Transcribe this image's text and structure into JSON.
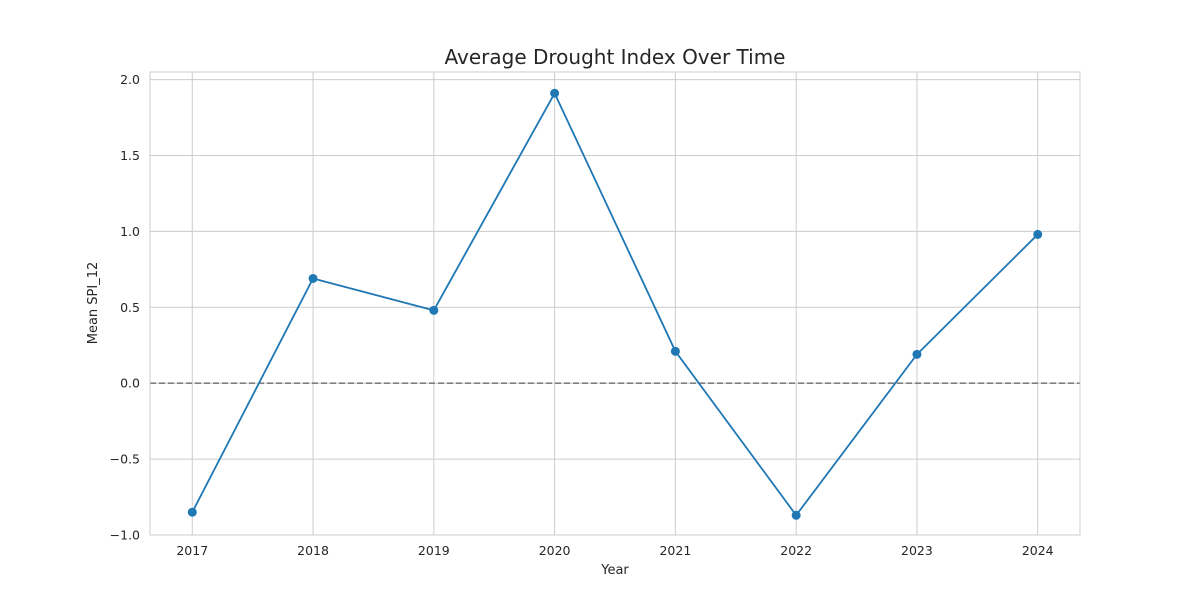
{
  "chart_data": {
    "type": "line",
    "title": "Average Drought Index Over Time",
    "xlabel": "Year",
    "ylabel": "Mean SPI_12",
    "categories": [
      "2017",
      "2018",
      "2019",
      "2020",
      "2021",
      "2022",
      "2023",
      "2024"
    ],
    "x": [
      2017,
      2018,
      2019,
      2020,
      2021,
      2022,
      2023,
      2024
    ],
    "series": [
      {
        "values": [
          -0.85,
          0.69,
          0.48,
          1.91,
          0.21,
          -0.87,
          0.19,
          0.98
        ],
        "color": "#1f77b4",
        "marker": "circle"
      }
    ],
    "xlim": [
      2016.65,
      2024.35
    ],
    "ylim": [
      -1.0,
      2.05
    ],
    "yticks": [
      -1.0,
      -0.5,
      0.0,
      0.5,
      1.0,
      1.5,
      2.0
    ],
    "ytick_labels": [
      "−1.0",
      "−0.5",
      "0.0",
      "0.5",
      "1.0",
      "1.5",
      "2.0"
    ],
    "reference_line": {
      "y": 0.0,
      "style": "dashed",
      "color": "#808080"
    },
    "grid": true,
    "grid_color": "#cccccc",
    "legend": false
  }
}
